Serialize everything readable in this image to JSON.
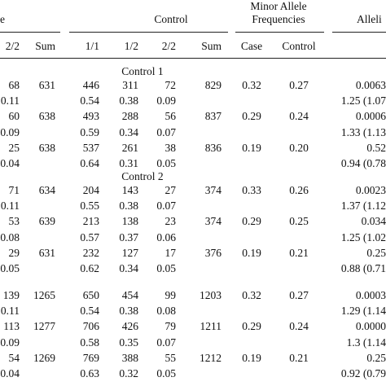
{
  "header": {
    "case_partial": "e",
    "control": "Control",
    "maf_line1": "Minor Allele",
    "maf_line2": "Frequencies",
    "allelic_partial": "Alleli",
    "cols": {
      "case_22": "2/2",
      "case_sum": "Sum",
      "ctrl_11": "1/1",
      "ctrl_12": "1/2",
      "ctrl_22": "2/2",
      "ctrl_sum": "Sum",
      "maf_case": "Case",
      "maf_control": "Control"
    }
  },
  "groups": [
    {
      "label": "Control 1",
      "rows": [
        {
          "case22": "68",
          "caseSum": "631",
          "c11": "446",
          "c12": "311",
          "c22": "72",
          "cSum": "829",
          "mafCase": "0.32",
          "mafCtrl": "0.27",
          "allelic": "0.0063"
        },
        {
          "case22": "0.11",
          "caseSum": "",
          "c11": "0.54",
          "c12": "0.38",
          "c22": "0.09",
          "cSum": "",
          "mafCase": "",
          "mafCtrl": "",
          "allelic": "1.25 (1.07"
        },
        {
          "case22": "60",
          "caseSum": "638",
          "c11": "493",
          "c12": "288",
          "c22": "56",
          "cSum": "837",
          "mafCase": "0.29",
          "mafCtrl": "0.24",
          "allelic": "0.0006"
        },
        {
          "case22": "0.09",
          "caseSum": "",
          "c11": "0.59",
          "c12": "0.34",
          "c22": "0.07",
          "cSum": "",
          "mafCase": "",
          "mafCtrl": "",
          "allelic": "1.33 (1.13"
        },
        {
          "case22": "25",
          "caseSum": "638",
          "c11": "537",
          "c12": "261",
          "c22": "38",
          "cSum": "836",
          "mafCase": "0.19",
          "mafCtrl": "0.20",
          "allelic": "0.52"
        },
        {
          "case22": "0.04",
          "caseSum": "",
          "c11": "0.64",
          "c12": "0.31",
          "c22": "0.05",
          "cSum": "",
          "mafCase": "",
          "mafCtrl": "",
          "allelic": "0.94 (0.78"
        }
      ]
    },
    {
      "label": "Control 2",
      "rows": [
        {
          "case22": "71",
          "caseSum": "634",
          "c11": "204",
          "c12": "143",
          "c22": "27",
          "cSum": "374",
          "mafCase": "0.33",
          "mafCtrl": "0.26",
          "allelic": "0.0023"
        },
        {
          "case22": "0.11",
          "caseSum": "",
          "c11": "0.55",
          "c12": "0.38",
          "c22": "0.07",
          "cSum": "",
          "mafCase": "",
          "mafCtrl": "",
          "allelic": "1.37 (1.12"
        },
        {
          "case22": "53",
          "caseSum": "639",
          "c11": "213",
          "c12": "138",
          "c22": "23",
          "cSum": "374",
          "mafCase": "0.29",
          "mafCtrl": "0.25",
          "allelic": "0.034"
        },
        {
          "case22": "0.08",
          "caseSum": "",
          "c11": "0.57",
          "c12": "0.37",
          "c22": "0.06",
          "cSum": "",
          "mafCase": "",
          "mafCtrl": "",
          "allelic": "1.25 (1.02"
        },
        {
          "case22": "29",
          "caseSum": "631",
          "c11": "232",
          "c12": "127",
          "c22": "17",
          "cSum": "376",
          "mafCase": "0.19",
          "mafCtrl": "0.21",
          "allelic": "0.25"
        },
        {
          "case22": "0.05",
          "caseSum": "",
          "c11": "0.62",
          "c12": "0.34",
          "c22": "0.05",
          "cSum": "",
          "mafCase": "",
          "mafCtrl": "",
          "allelic": "0.88 (0.71"
        }
      ]
    },
    {
      "label": "",
      "rows": [
        {
          "case22": "139",
          "caseSum": "1265",
          "c11": "650",
          "c12": "454",
          "c22": "99",
          "cSum": "1203",
          "mafCase": "0.32",
          "mafCtrl": "0.27",
          "allelic": "0.0003"
        },
        {
          "case22": "0.11",
          "caseSum": "",
          "c11": "0.54",
          "c12": "0.38",
          "c22": "0.08",
          "cSum": "",
          "mafCase": "",
          "mafCtrl": "",
          "allelic": "1.29 (1.14"
        },
        {
          "case22": "113",
          "caseSum": "1277",
          "c11": "706",
          "c12": "426",
          "c22": "79",
          "cSum": "1211",
          "mafCase": "0.29",
          "mafCtrl": "0.24",
          "allelic": "0.0000"
        },
        {
          "case22": "0.09",
          "caseSum": "",
          "c11": "0.58",
          "c12": "0.35",
          "c22": "0.07",
          "cSum": "",
          "mafCase": "",
          "mafCtrl": "",
          "allelic": "1.3 (1.14"
        },
        {
          "case22": "54",
          "caseSum": "1269",
          "c11": "769",
          "c12": "388",
          "c22": "55",
          "cSum": "1212",
          "mafCase": "0.19",
          "mafCtrl": "0.21",
          "allelic": "0.25"
        },
        {
          "case22": "0.04",
          "caseSum": "",
          "c11": "0.63",
          "c12": "0.32",
          "c22": "0.05",
          "cSum": "",
          "mafCase": "",
          "mafCtrl": "",
          "allelic": "0.92 (0.79"
        }
      ]
    }
  ]
}
